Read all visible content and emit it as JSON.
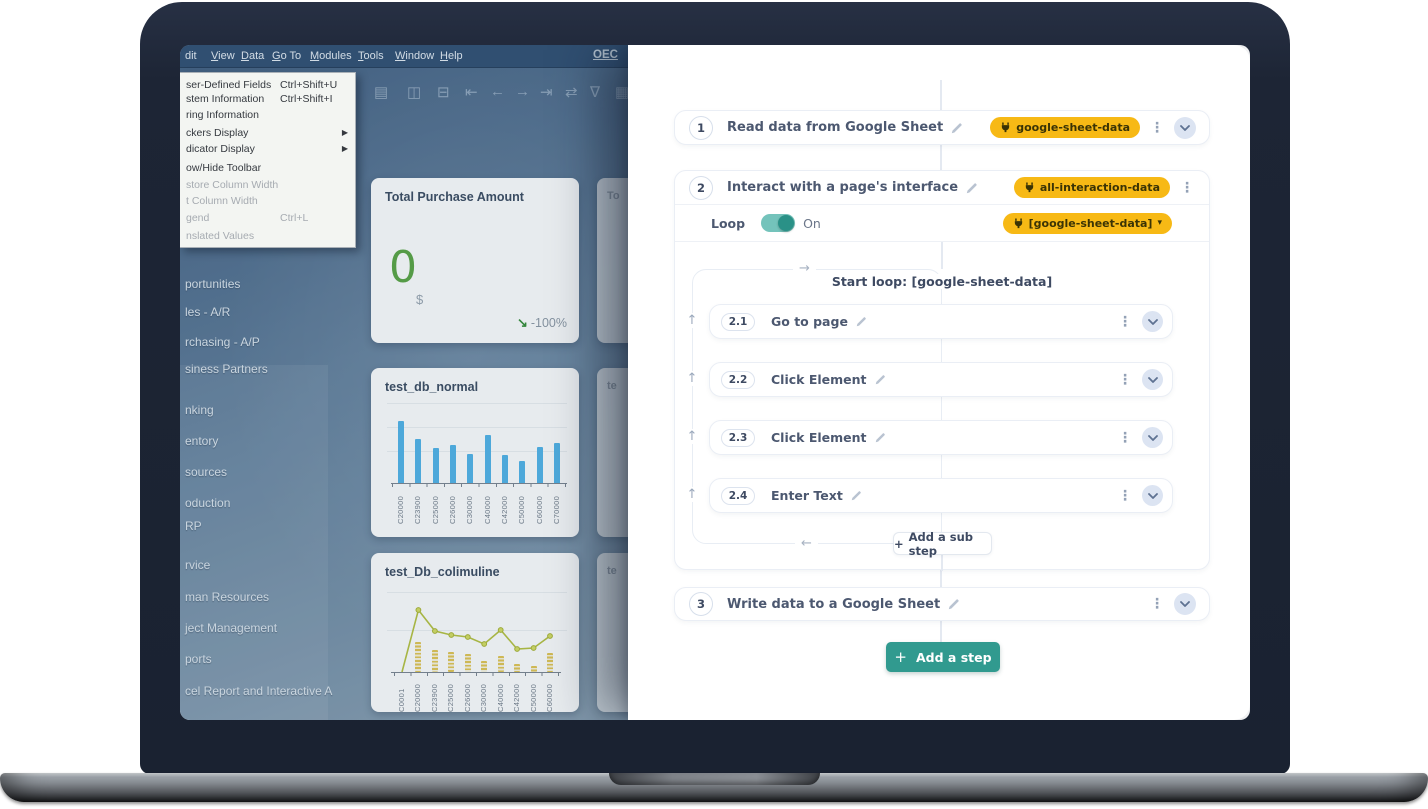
{
  "glyphs": {
    "plus": "+",
    "kebab": "⋮",
    "up_arrow": "↑",
    "left_arrow": "←",
    "right_arrow": "→",
    "trend_down": "↘",
    "badge_caret": "▾"
  },
  "builder": {
    "steps": {
      "step1": {
        "number": "1",
        "title": "Read data from Google Sheet",
        "badge": "google-sheet-data"
      },
      "step2": {
        "number": "2",
        "title": "Interact with a page's interface",
        "badge": "all-interaction-data"
      },
      "step3": {
        "number": "3",
        "title": "Write data to a Google Sheet"
      }
    },
    "loop": {
      "label": "Loop",
      "state": "On",
      "badge": "[google-sheet-data]",
      "start_label": "Start loop: [google-sheet-data]",
      "substeps": [
        {
          "number": "2.1",
          "title": "Go to page"
        },
        {
          "number": "2.2",
          "title": "Click Element"
        },
        {
          "number": "2.3",
          "title": "Click Element"
        },
        {
          "number": "2.4",
          "title": "Enter Text"
        }
      ],
      "add_sub_step_label": "Add a sub step"
    },
    "add_step_label": "Add a step",
    "colors": {
      "accent_teal": "#319a8f",
      "badge_yellow": "#f7b915"
    }
  },
  "erp": {
    "menubar": {
      "items": [
        {
          "label": "dit",
          "underline_first": false
        },
        {
          "label": "View",
          "underline_first": true
        },
        {
          "label": "Data",
          "underline_first": true
        },
        {
          "label": "Go To",
          "underline_first": true
        },
        {
          "label": "Modules",
          "underline_first": true
        },
        {
          "label": "Tools",
          "underline_first": true
        },
        {
          "label": "Window",
          "underline_first": true
        },
        {
          "label": "Help",
          "underline_first": true
        }
      ],
      "right_text": "OEC"
    },
    "toolbar_icons": [
      {
        "name": "form-settings-icon",
        "glyph": "▤"
      },
      {
        "name": "find-icon",
        "glyph": "◫"
      },
      {
        "name": "export-icon",
        "glyph": "⊟"
      },
      {
        "name": "first-record-icon",
        "glyph": "⇤"
      },
      {
        "name": "previous-record-icon",
        "glyph": "←"
      },
      {
        "name": "next-record-icon",
        "glyph": "→"
      },
      {
        "name": "last-record-icon",
        "glyph": "⇥"
      },
      {
        "name": "refresh-icon",
        "glyph": "⇄"
      },
      {
        "name": "filter-icon",
        "glyph": "∇"
      },
      {
        "name": "sort-icon",
        "glyph": "▦"
      }
    ],
    "view_menu": {
      "items": [
        {
          "label": "ser-Defined Fields",
          "shortcut": "Ctrl+Shift+U",
          "disabled": false,
          "submenu": false
        },
        {
          "label": "stem Information",
          "shortcut": "Ctrl+Shift+I",
          "disabled": false,
          "submenu": false
        },
        {
          "label": "ring Information",
          "shortcut": "",
          "disabled": false,
          "submenu": false
        },
        {
          "label": "ckers Display",
          "shortcut": "",
          "disabled": false,
          "submenu": true
        },
        {
          "label": "dicator Display",
          "shortcut": "",
          "disabled": false,
          "submenu": true
        },
        {
          "label": "ow/Hide Toolbar",
          "shortcut": "",
          "disabled": false,
          "submenu": false
        },
        {
          "label": "store Column Width",
          "shortcut": "",
          "disabled": true,
          "submenu": false
        },
        {
          "label": "t Column Width",
          "shortcut": "",
          "disabled": true,
          "submenu": false
        },
        {
          "label": "gend",
          "shortcut": "Ctrl+L",
          "disabled": true,
          "submenu": false
        },
        {
          "label": "nslated Values",
          "shortcut": "",
          "disabled": true,
          "submenu": false
        }
      ]
    },
    "sidebar_items": [
      "portunities",
      "les - A/R",
      "rchasing - A/P",
      "siness Partners",
      "nking",
      "entory",
      "sources",
      "oduction",
      "RP",
      "rvice",
      "man Resources",
      "ject Management",
      "ports",
      "cel Report and Interactive A"
    ],
    "partial_cards": [
      {
        "text": "To"
      },
      {
        "text": "te"
      },
      {
        "text": "te"
      }
    ]
  },
  "chart_data": [
    {
      "type": "kpi",
      "title": "Total Purchase Amount",
      "value": "0",
      "unit": "$",
      "delta_label": "-100%",
      "trend": "down"
    },
    {
      "type": "bar",
      "title": "test_db_normal",
      "categories": [
        "C20000",
        "C23900",
        "C25000",
        "C26000",
        "C30000",
        "C40000",
        "C42000",
        "C50000",
        "C60000",
        "C70000"
      ],
      "values": [
        62,
        44,
        35,
        38,
        29,
        48,
        28,
        22,
        36,
        40
      ],
      "value_unit": "relative-height-px (no y-axis labels visible)",
      "bar_color": "#4cb2e8",
      "grid": true,
      "xlabel": "",
      "ylabel": ""
    },
    {
      "type": "combo-line-bar",
      "title": "test_Db_colimuline",
      "categories": [
        "C0001",
        "C20000",
        "C23900",
        "C25000",
        "C26000",
        "C30000",
        "C40000",
        "C42000",
        "C50000",
        "C60000"
      ],
      "series": [
        {
          "name": "line",
          "type": "line",
          "color": "#b5c13a",
          "values": [
            0,
            62,
            41,
            37,
            35,
            28,
            42,
            23,
            24,
            36
          ]
        },
        {
          "name": "bars",
          "type": "bar",
          "color": "#e2c44d",
          "values": [
            0,
            30,
            22,
            20,
            18,
            11,
            16,
            8,
            6,
            19
          ]
        }
      ],
      "value_unit": "relative-height-px (no y-axis labels visible)",
      "grid": true,
      "xlabel": "",
      "ylabel": ""
    }
  ]
}
